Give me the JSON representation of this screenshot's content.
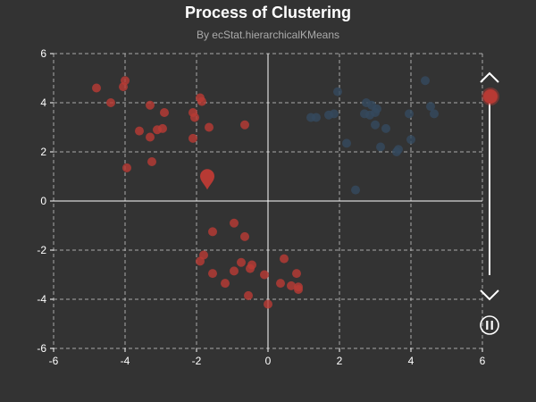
{
  "chart_data": {
    "type": "scatter",
    "title": "Process of Clustering",
    "subtitle": "By ecStat.hierarchicalKMeans",
    "xlim": [
      -6,
      6
    ],
    "ylim": [
      -6,
      6
    ],
    "x_ticks": [
      "-6",
      "-4",
      "-2",
      "0",
      "2",
      "4",
      "6"
    ],
    "y_ticks": [
      "6",
      "4",
      "2",
      "0",
      "-2",
      "-4",
      "-6"
    ],
    "grid": true,
    "colors": {
      "red": "#b73a34",
      "blue": "#34495e",
      "bg": "#333333",
      "pin": "#b73a34"
    },
    "series": [
      {
        "color": "#b73a34",
        "points": [
          [
            -4.8,
            4.6
          ],
          [
            -4.0,
            4.9
          ],
          [
            -4.05,
            4.65
          ],
          [
            -4.4,
            4.0
          ],
          [
            -3.3,
            3.9
          ],
          [
            -2.9,
            3.6
          ],
          [
            -3.6,
            2.85
          ],
          [
            -3.3,
            2.6
          ],
          [
            -3.1,
            2.9
          ],
          [
            -2.95,
            2.95
          ],
          [
            -2.1,
            3.6
          ],
          [
            -2.05,
            3.4
          ],
          [
            -1.9,
            4.2
          ],
          [
            -1.85,
            4.05
          ],
          [
            -1.65,
            3.0
          ],
          [
            -0.65,
            3.1
          ],
          [
            -2.1,
            2.55
          ],
          [
            -3.95,
            1.35
          ],
          [
            -3.25,
            1.6
          ],
          [
            -0.95,
            -0.9
          ],
          [
            -1.55,
            -1.25
          ],
          [
            -0.65,
            -1.45
          ],
          [
            -1.8,
            -2.2
          ],
          [
            -1.9,
            -2.45
          ],
          [
            -1.55,
            -2.95
          ],
          [
            -1.2,
            -3.35
          ],
          [
            -0.95,
            -2.85
          ],
          [
            -0.75,
            -2.5
          ],
          [
            -0.5,
            -2.75
          ],
          [
            -0.45,
            -2.6
          ],
          [
            -0.55,
            -3.85
          ],
          [
            -0.1,
            -3.0
          ],
          [
            0.45,
            -2.35
          ],
          [
            0.35,
            -3.35
          ],
          [
            0.65,
            -3.45
          ],
          [
            0.8,
            -2.95
          ],
          [
            0.85,
            -3.5
          ],
          [
            0.85,
            -3.6
          ],
          [
            0.0,
            -4.2
          ]
        ]
      },
      {
        "color": "#34495e",
        "points": [
          [
            1.2,
            3.4
          ],
          [
            1.35,
            3.4
          ],
          [
            1.7,
            3.5
          ],
          [
            1.85,
            3.55
          ],
          [
            1.95,
            4.45
          ],
          [
            2.2,
            2.35
          ],
          [
            2.45,
            0.45
          ],
          [
            2.7,
            3.55
          ],
          [
            2.75,
            4.0
          ],
          [
            2.85,
            3.5
          ],
          [
            2.9,
            3.9
          ],
          [
            3.0,
            3.6
          ],
          [
            3.05,
            3.75
          ],
          [
            3.0,
            3.1
          ],
          [
            3.15,
            2.2
          ],
          [
            3.3,
            2.95
          ],
          [
            3.6,
            2.0
          ],
          [
            3.65,
            2.1
          ],
          [
            3.95,
            3.55
          ],
          [
            4.0,
            2.5
          ],
          [
            4.4,
            4.9
          ],
          [
            4.55,
            3.85
          ],
          [
            4.65,
            3.55
          ]
        ]
      }
    ],
    "centers": [
      {
        "x": -1.7,
        "y": 0.9,
        "color": "#b73a34"
      }
    ]
  },
  "timeline": {
    "current_fraction": 0.0,
    "play_state": "playing",
    "prev_icon": "chevron-up-icon",
    "next_icon": "chevron-down-icon",
    "control_icon": "pause-icon"
  }
}
